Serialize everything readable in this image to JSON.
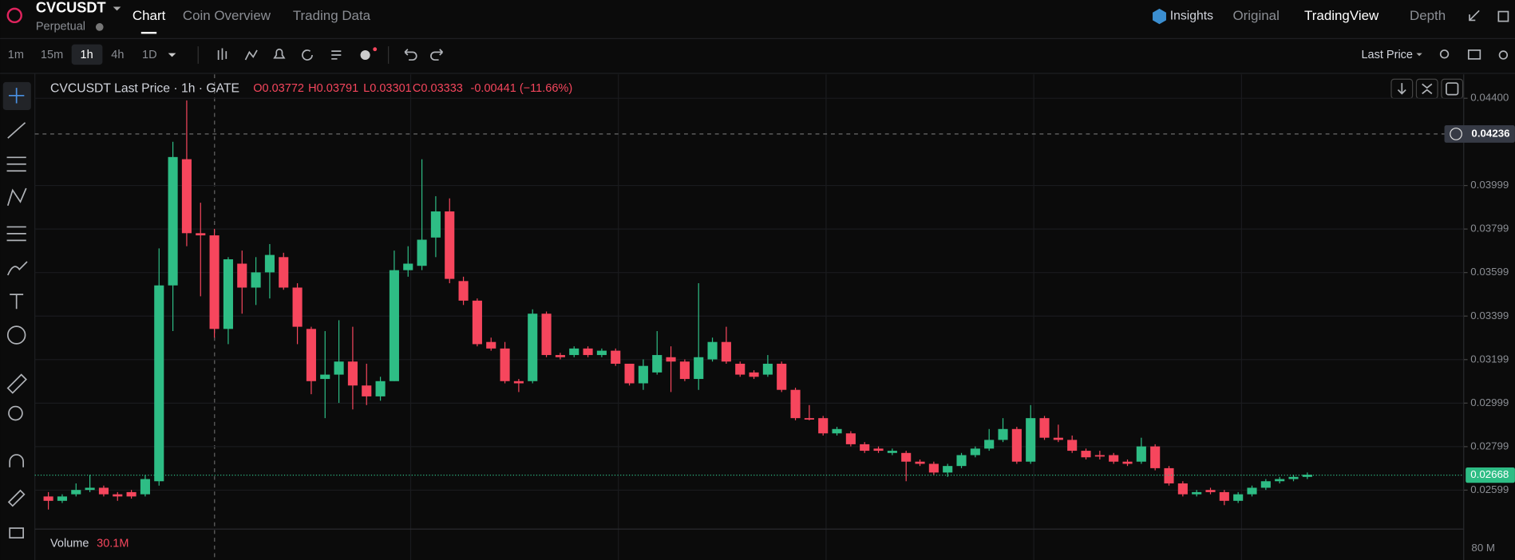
{
  "header": {
    "symbol": "CVCUSDT",
    "contract": "Perpetual",
    "tabs": [
      "Chart",
      "Coin Overview",
      "Trading Data"
    ],
    "views": [
      "Insights",
      "Original",
      "TradingView",
      "Depth"
    ]
  },
  "toolbar": {
    "intervals": [
      "1m",
      "15m",
      "1h",
      "4h",
      "1D"
    ],
    "price_source": "Last Price"
  },
  "legend": {
    "title": "CVCUSDT Last Price · 1h · GATE",
    "ohlc": [
      "O0.03772",
      "H0.03791",
      "L0.03301",
      "C0.03333",
      "-0.00441 (−11.66%)"
    ]
  },
  "volume": {
    "label": "Volume",
    "value": "30.1M",
    "axis_label": "80 M"
  },
  "chart_data": {
    "type": "candlestick",
    "up_color": "#2ebd85",
    "down_color": "#f6465d",
    "grid": true,
    "ylim": [
      0.0242,
      0.0451
    ],
    "yticks": [
      {
        "value": 0.044,
        "label": "0.04400"
      },
      0.03999,
      0.03799,
      0.03599,
      0.03399,
      0.03199,
      0.02999,
      0.02799,
      0.02599
    ],
    "last_price": 0.02668,
    "crosshair_price": 0.04236,
    "open": [
      0.0257,
      0.0255,
      0.0258,
      0.026,
      0.0261,
      0.0258,
      0.0259,
      0.0258,
      0.0264,
      0.0354,
      0.0412,
      0.0378,
      0.0377,
      0.0334,
      0.0364,
      0.0353,
      0.036,
      0.0367,
      0.0353,
      0.0334,
      0.0311,
      0.0313,
      0.0319,
      0.0308,
      0.0303,
      0.031,
      0.0361,
      0.0363,
      0.0376,
      0.0388,
      0.0356,
      0.0347,
      0.0328,
      0.0325,
      0.031,
      0.031,
      0.0341,
      0.0322,
      0.0322,
      0.0325,
      0.0322,
      0.0324,
      0.0318,
      0.0309,
      0.0314,
      0.0321,
      0.0319,
      0.0311,
      0.032,
      0.0328,
      0.0318,
      0.0314,
      0.0313,
      0.0318,
      0.0306,
      0.0293,
      0.0293,
      0.0286,
      0.0286,
      0.0281,
      0.0279,
      0.0277,
      0.0277,
      0.0273,
      0.0272,
      0.0268,
      0.0271,
      0.0276,
      0.0279,
      0.0283,
      0.0288,
      0.0273,
      0.0293,
      0.0284,
      0.0283,
      0.0278,
      0.0276,
      0.0276,
      0.0273,
      0.0273,
      0.028,
      0.027,
      0.0263,
      0.0258,
      0.026,
      0.0259,
      0.0255,
      0.0258,
      0.0261,
      0.0264,
      0.0265,
      0.0266
    ],
    "high": [
      0.0259,
      0.0258,
      0.0263,
      0.0267,
      0.0262,
      0.0259,
      0.026,
      0.0267,
      0.0371,
      0.042,
      0.0439,
      0.0392,
      0.038,
      0.0367,
      0.037,
      0.0367,
      0.0373,
      0.0369,
      0.0355,
      0.0335,
      0.0333,
      0.0338,
      0.0335,
      0.0318,
      0.0312,
      0.037,
      0.0372,
      0.0412,
      0.0395,
      0.0394,
      0.0358,
      0.0348,
      0.033,
      0.0328,
      0.0311,
      0.0343,
      0.0342,
      0.0323,
      0.0326,
      0.0326,
      0.0325,
      0.0325,
      0.0318,
      0.032,
      0.0333,
      0.0326,
      0.032,
      0.0355,
      0.033,
      0.0335,
      0.0319,
      0.0315,
      0.0322,
      0.0319,
      0.0307,
      0.0299,
      0.0294,
      0.0289,
      0.0287,
      0.0282,
      0.028,
      0.0279,
      0.0278,
      0.0274,
      0.0273,
      0.0272,
      0.0277,
      0.028,
      0.0288,
      0.0293,
      0.0289,
      0.0299,
      0.0294,
      0.029,
      0.0285,
      0.0279,
      0.0278,
      0.0277,
      0.0274,
      0.0284,
      0.0281,
      0.0271,
      0.0264,
      0.026,
      0.0261,
      0.026,
      0.0259,
      0.0262,
      0.0265,
      0.0266,
      0.0267,
      0.0268
    ],
    "low": [
      0.0251,
      0.0254,
      0.0257,
      0.0259,
      0.0257,
      0.0255,
      0.0256,
      0.0257,
      0.0262,
      0.0333,
      0.0372,
      0.0349,
      0.033,
      0.0327,
      0.0341,
      0.0345,
      0.0348,
      0.0352,
      0.0327,
      0.0304,
      0.0293,
      0.03,
      0.0297,
      0.0299,
      0.0301,
      0.031,
      0.0358,
      0.0361,
      0.0367,
      0.0355,
      0.0345,
      0.0326,
      0.0324,
      0.0309,
      0.0305,
      0.0309,
      0.0321,
      0.032,
      0.0321,
      0.0321,
      0.0321,
      0.0317,
      0.0308,
      0.0306,
      0.0313,
      0.0305,
      0.031,
      0.0306,
      0.0319,
      0.0318,
      0.0312,
      0.0311,
      0.0312,
      0.0305,
      0.0292,
      0.0292,
      0.0285,
      0.0285,
      0.028,
      0.0277,
      0.0277,
      0.0276,
      0.0264,
      0.0271,
      0.0267,
      0.0266,
      0.027,
      0.0275,
      0.0278,
      0.0282,
      0.0272,
      0.0272,
      0.0283,
      0.0282,
      0.0277,
      0.0274,
      0.0274,
      0.0272,
      0.0271,
      0.0272,
      0.0269,
      0.0262,
      0.0257,
      0.0257,
      0.0258,
      0.0253,
      0.0254,
      0.0257,
      0.026,
      0.0263,
      0.0264,
      0.0265
    ],
    "close": [
      0.0255,
      0.0257,
      0.026,
      0.0261,
      0.0258,
      0.0257,
      0.0257,
      0.0265,
      0.0354,
      0.0413,
      0.0378,
      0.0377,
      0.0334,
      0.0366,
      0.0353,
      0.036,
      0.0368,
      0.0353,
      0.0335,
      0.031,
      0.0313,
      0.0319,
      0.0308,
      0.0303,
      0.031,
      0.0361,
      0.0364,
      0.0375,
      0.0388,
      0.0357,
      0.0347,
      0.0327,
      0.0325,
      0.031,
      0.0309,
      0.0341,
      0.0322,
      0.0321,
      0.0325,
      0.0322,
      0.0324,
      0.0318,
      0.0309,
      0.0317,
      0.0322,
      0.0319,
      0.0311,
      0.0321,
      0.0328,
      0.0319,
      0.0313,
      0.0312,
      0.0318,
      0.0306,
      0.0293,
      0.0293,
      0.0286,
      0.0288,
      0.0281,
      0.0278,
      0.0278,
      0.0278,
      0.0273,
      0.0272,
      0.0268,
      0.0271,
      0.0276,
      0.0279,
      0.0283,
      0.0288,
      0.0273,
      0.0293,
      0.0284,
      0.0283,
      0.0278,
      0.0275,
      0.0276,
      0.0273,
      0.0272,
      0.028,
      0.027,
      0.0263,
      0.0258,
      0.0259,
      0.0259,
      0.0255,
      0.0258,
      0.0261,
      0.0264,
      0.0265,
      0.0266,
      0.0267
    ]
  }
}
